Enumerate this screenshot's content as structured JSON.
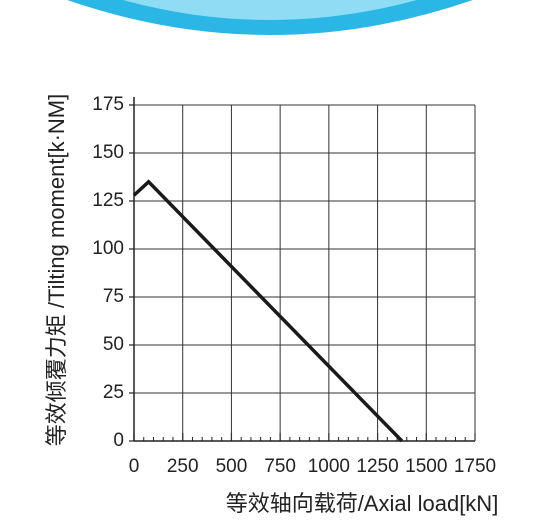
{
  "chart_data": {
    "type": "line",
    "x_label": "等效轴向载荷/Axial load[kN]",
    "y_label": "等效倾覆力矩 /Tilting moment[k·NM]",
    "x": [
      0,
      75,
      1375
    ],
    "series": [
      {
        "name": null,
        "color": "#1a1a1a",
        "values": [
          128,
          135,
          0
        ]
      }
    ],
    "xlim": [
      0,
      1750
    ],
    "xticks": [
      0,
      250,
      500,
      750,
      1000,
      1250,
      1500,
      1750
    ],
    "ylim": [
      0,
      175
    ],
    "yticks": [
      0,
      25,
      50,
      75,
      100,
      125,
      150,
      175
    ],
    "grid": true
  }
}
